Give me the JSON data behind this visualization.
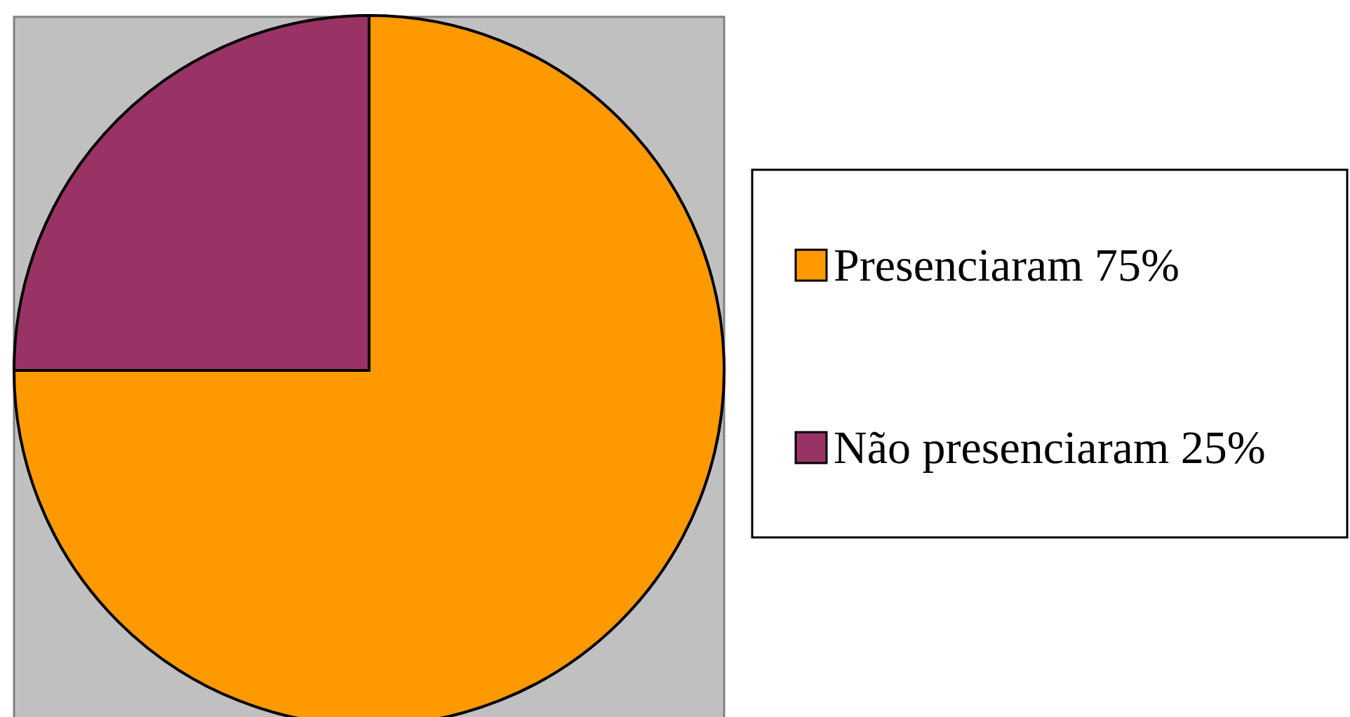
{
  "chart_data": {
    "type": "pie",
    "categories": [
      "Presenciaram",
      "Não presenciaram"
    ],
    "values": [
      75,
      25
    ],
    "value_labels": [
      "75%",
      "25%"
    ],
    "colors": [
      "#ff9900",
      "#993366"
    ],
    "legend": "right"
  }
}
